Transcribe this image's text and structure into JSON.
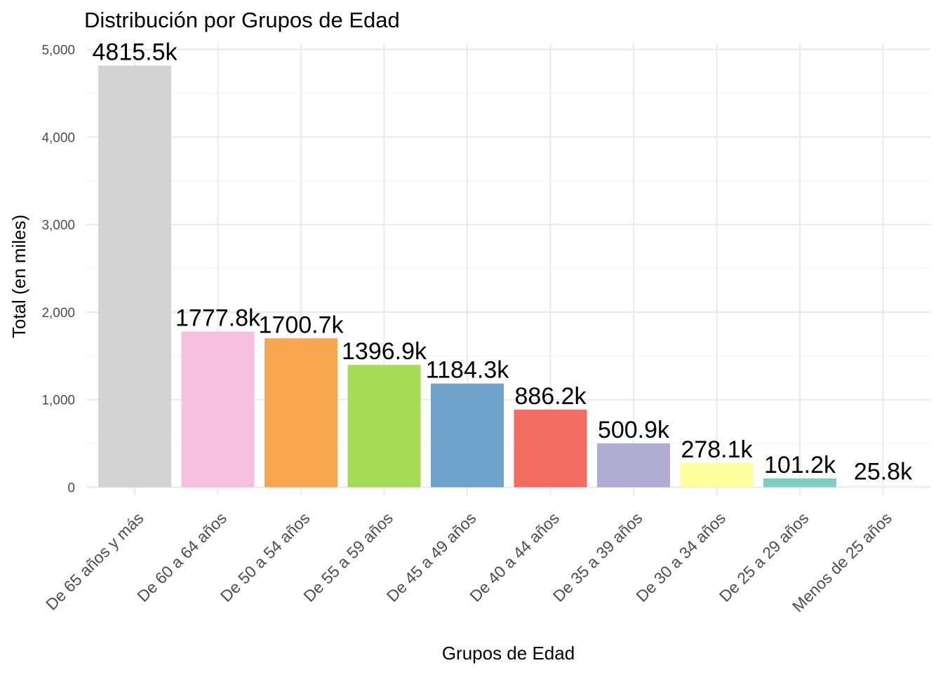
{
  "chart_data": {
    "type": "bar",
    "title": "Distribución por Grupos de Edad",
    "xlabel": "Grupos de Edad",
    "ylabel": "Total (en miles)",
    "categories": [
      "De 65 años y más",
      "De 60 a 64 años",
      "De 50 a 54 años",
      "De 55 a 59 años",
      "De 45 a 49 años",
      "De 40 a 44 años",
      "De 35 a 39 años",
      "De 30 a 34 años",
      "De 25 a 29 años",
      "Menos de 25 años"
    ],
    "values": [
      4815.5,
      1777.8,
      1700.7,
      1396.9,
      1184.3,
      886.2,
      500.9,
      278.1,
      101.2,
      25.8
    ],
    "data_labels": [
      "4815.5k",
      "1777.8k",
      "1700.7k",
      "1396.9k",
      "1184.3k",
      "886.2k",
      "500.9k",
      "278.1k",
      "101.2k",
      "25.8k"
    ],
    "colors": [
      "#d3d3d3",
      "#f7c0de",
      "#f9a650",
      "#a6db58",
      "#6ea3cb",
      "#f46b62",
      "#b1acd2",
      "#feff9f",
      "#80cdc1",
      "#f5f5f5"
    ],
    "ylim": [
      0,
      5000
    ],
    "yticks": [
      0,
      1000,
      2000,
      3000,
      4000,
      5000
    ],
    "ytick_labels": [
      "0",
      "1,000",
      "2,000",
      "3,000",
      "4,000",
      "5,000"
    ],
    "grid": true,
    "legend": "none"
  }
}
